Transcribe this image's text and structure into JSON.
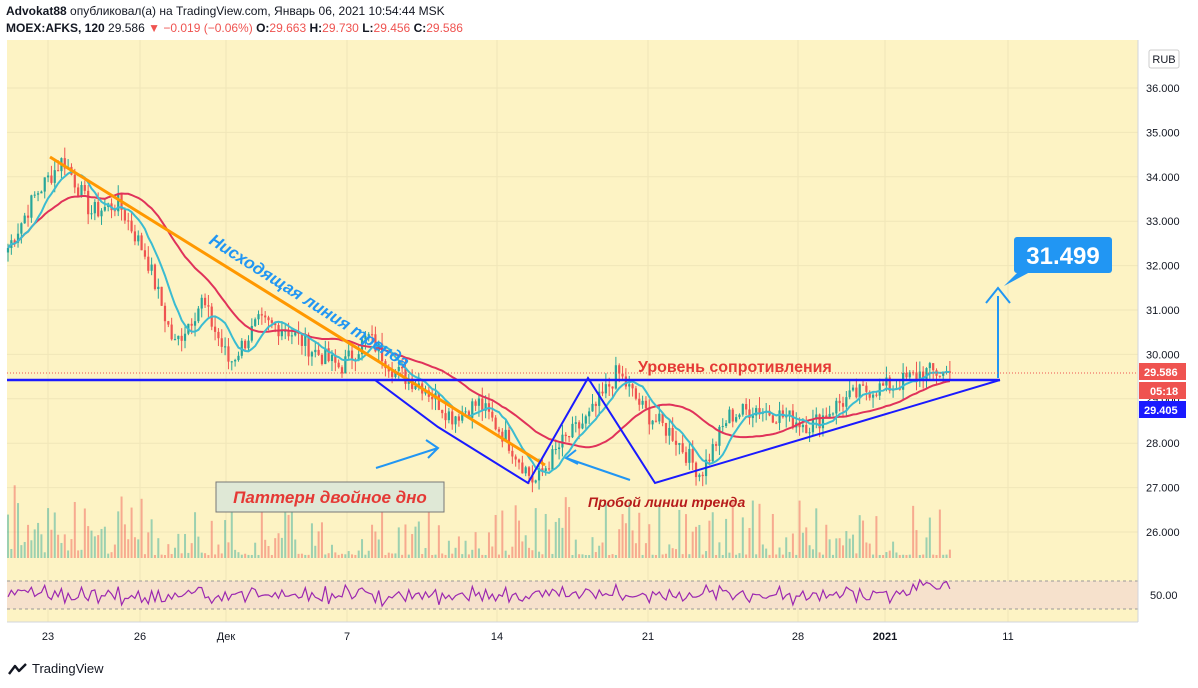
{
  "header": {
    "author": "Advokat88",
    "published_text": "опубликовал(а) на TradingView.com, Январь 06, 2021 10:54:44 MSK",
    "symbol": "MOEX:AFKS, 120",
    "last": "29.586",
    "change": "−0.019 (−0.06%)",
    "open_label": "O:",
    "open": "29.663",
    "high_label": "H:",
    "high": "29.730",
    "low_label": "L:",
    "low": "29.456",
    "close_label": "C:",
    "close": "29.586"
  },
  "footer": {
    "brand": "TradingView"
  },
  "colors": {
    "background": "#fdf3c4",
    "up": "#26a69a",
    "down": "#ef5350",
    "ma_fast": "#3bbcd1",
    "ma_slow": "#e0325a",
    "trend_line": "#ff9800",
    "pattern_line": "#1a1aff",
    "label_blue": "#2196f3"
  },
  "chart_data": {
    "type": "candlestick",
    "currency": "RUB",
    "ylim": [
      25.3,
      36.6
    ],
    "y_ticks": [
      "36.000",
      "35.000",
      "34.000",
      "33.000",
      "32.000",
      "31.000",
      "30.000",
      "29.000",
      "28.000",
      "27.000",
      "26.000"
    ],
    "x_ticks": [
      "23",
      "26",
      "Дек",
      "7",
      "14",
      "21",
      "28",
      "2021",
      "11"
    ],
    "price_labels": {
      "last": "29.586",
      "countdown": "05:18",
      "level": "29.405"
    },
    "price_path": [
      [
        "Ноя 23",
        32.4
      ],
      [
        "Ноя 23",
        33.6
      ],
      [
        "Ноя 24",
        34.4
      ],
      [
        "Ноя 24",
        33.2
      ],
      [
        "Ноя 25",
        33.4
      ],
      [
        "Ноя 25",
        32.2
      ],
      [
        "Ноя 26",
        30.2
      ],
      [
        "Ноя 26",
        31.2
      ],
      [
        "Ноя 27",
        29.8
      ],
      [
        "Ноя 30",
        30.7
      ],
      [
        "Дек 1",
        30.6
      ],
      [
        "Дек 2",
        30.1
      ],
      [
        "Дек 3",
        29.7
      ],
      [
        "Дек 4",
        30.4
      ],
      [
        "Дек 7",
        29.6
      ],
      [
        "Дек 8",
        29.3
      ],
      [
        "Дек 9",
        28.6
      ],
      [
        "Дек 10",
        28.9
      ],
      [
        "Дек 11",
        28.1
      ],
      [
        "Дек 14",
        27.1
      ],
      [
        "Дек 15",
        28.0
      ],
      [
        "Дек 16",
        28.6
      ],
      [
        "Дек 17",
        29.6
      ],
      [
        "Дек 18",
        28.7
      ],
      [
        "Дек 21",
        28.2
      ],
      [
        "Дек 22",
        27.3
      ],
      [
        "Дек 23",
        28.6
      ],
      [
        "Дек 24",
        28.8
      ],
      [
        "Дек 25",
        28.6
      ],
      [
        "Дек 28",
        28.4
      ],
      [
        "Дек 29",
        28.9
      ],
      [
        "Дек 30",
        29.2
      ],
      [
        "Янв 4",
        29.3
      ],
      [
        "Янв 5",
        29.6
      ],
      [
        "Янв 6",
        29.586
      ]
    ],
    "rsi_level": 50.0,
    "rsi_ticks": [
      "50.00"
    ],
    "annotations": {
      "descending_trend": "Нисходящая линия тренда",
      "resistance": "Уровень сопротивления",
      "double_bottom": "Паттерн двойное дно",
      "breakout": "Пробой линии тренда",
      "target": "31.499"
    }
  }
}
